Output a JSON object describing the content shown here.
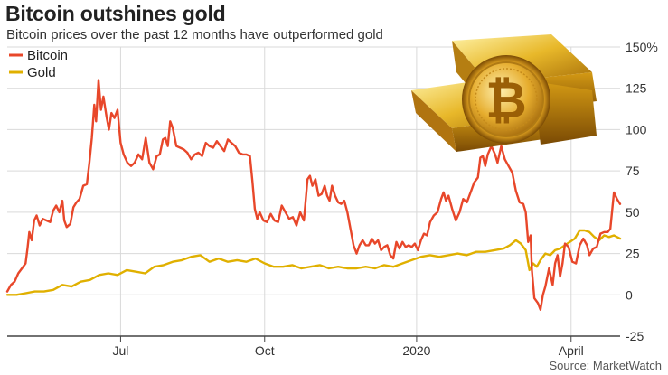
{
  "chart_data": {
    "type": "line",
    "title": "Bitcoin outshines gold",
    "subtitle": "Bitcoin prices over the past 12 months have outperformed gold",
    "source": "Source: MarketWatch",
    "y_unit_suffix": "%",
    "ylim": [
      -25,
      150
    ],
    "y_ticks": [
      -25,
      0,
      25,
      50,
      75,
      100,
      125,
      150
    ],
    "x_ticks": [
      {
        "label": "Jul",
        "t": 0.185
      },
      {
        "label": "Oct",
        "t": 0.42
      },
      {
        "label": "2020",
        "t": 0.668
      },
      {
        "label": "April",
        "t": 0.92
      }
    ],
    "legend": {
      "placement": "top-left"
    },
    "grid": true,
    "series": [
      {
        "name": "Bitcoin",
        "color": "#e8472a",
        "points": [
          [
            0.0,
            2
          ],
          [
            0.006,
            6
          ],
          [
            0.012,
            8
          ],
          [
            0.018,
            13
          ],
          [
            0.024,
            16
          ],
          [
            0.03,
            19
          ],
          [
            0.033,
            28
          ],
          [
            0.036,
            38
          ],
          [
            0.04,
            33
          ],
          [
            0.044,
            45
          ],
          [
            0.048,
            48
          ],
          [
            0.053,
            42
          ],
          [
            0.058,
            46
          ],
          [
            0.064,
            45
          ],
          [
            0.07,
            44
          ],
          [
            0.075,
            51
          ],
          [
            0.08,
            54
          ],
          [
            0.085,
            50
          ],
          [
            0.09,
            57
          ],
          [
            0.093,
            45
          ],
          [
            0.097,
            41
          ],
          [
            0.103,
            43
          ],
          [
            0.108,
            53
          ],
          [
            0.113,
            56
          ],
          [
            0.118,
            58
          ],
          [
            0.124,
            66
          ],
          [
            0.13,
            67
          ],
          [
            0.134,
            80
          ],
          [
            0.138,
            95
          ],
          [
            0.142,
            115
          ],
          [
            0.145,
            105
          ],
          [
            0.149,
            130
          ],
          [
            0.153,
            112
          ],
          [
            0.157,
            120
          ],
          [
            0.162,
            108
          ],
          [
            0.166,
            100
          ],
          [
            0.17,
            110
          ],
          [
            0.175,
            107
          ],
          [
            0.18,
            112
          ],
          [
            0.185,
            92
          ],
          [
            0.19,
            85
          ],
          [
            0.196,
            80
          ],
          [
            0.202,
            78
          ],
          [
            0.208,
            80
          ],
          [
            0.214,
            85
          ],
          [
            0.22,
            82
          ],
          [
            0.226,
            95
          ],
          [
            0.232,
            80
          ],
          [
            0.238,
            76
          ],
          [
            0.244,
            84
          ],
          [
            0.249,
            85
          ],
          [
            0.254,
            94
          ],
          [
            0.258,
            95
          ],
          [
            0.262,
            90
          ],
          [
            0.266,
            105
          ],
          [
            0.27,
            101
          ],
          [
            0.276,
            90
          ],
          [
            0.282,
            89
          ],
          [
            0.288,
            88
          ],
          [
            0.294,
            86
          ],
          [
            0.3,
            82
          ],
          [
            0.306,
            85
          ],
          [
            0.312,
            86
          ],
          [
            0.318,
            84
          ],
          [
            0.324,
            92
          ],
          [
            0.33,
            90
          ],
          [
            0.336,
            89
          ],
          [
            0.342,
            93
          ],
          [
            0.348,
            90
          ],
          [
            0.354,
            87
          ],
          [
            0.36,
            94
          ],
          [
            0.366,
            92
          ],
          [
            0.372,
            90
          ],
          [
            0.378,
            86
          ],
          [
            0.384,
            85
          ],
          [
            0.39,
            85
          ],
          [
            0.396,
            84
          ],
          [
            0.4,
            69
          ],
          [
            0.404,
            52
          ],
          [
            0.408,
            46
          ],
          [
            0.412,
            50
          ],
          [
            0.418,
            45
          ],
          [
            0.424,
            44
          ],
          [
            0.43,
            49
          ],
          [
            0.436,
            45
          ],
          [
            0.442,
            44
          ],
          [
            0.448,
            54
          ],
          [
            0.454,
            50
          ],
          [
            0.46,
            46
          ],
          [
            0.466,
            47
          ],
          [
            0.472,
            42
          ],
          [
            0.478,
            50
          ],
          [
            0.484,
            45
          ],
          [
            0.49,
            70
          ],
          [
            0.494,
            72
          ],
          [
            0.498,
            66
          ],
          [
            0.503,
            70
          ],
          [
            0.508,
            60
          ],
          [
            0.513,
            61
          ],
          [
            0.518,
            66
          ],
          [
            0.522,
            60
          ],
          [
            0.526,
            57
          ],
          [
            0.53,
            66
          ],
          [
            0.535,
            60
          ],
          [
            0.54,
            56
          ],
          [
            0.545,
            55
          ],
          [
            0.55,
            57
          ],
          [
            0.555,
            50
          ],
          [
            0.56,
            40
          ],
          [
            0.565,
            30
          ],
          [
            0.57,
            25
          ],
          [
            0.575,
            30
          ],
          [
            0.58,
            33
          ],
          [
            0.585,
            30
          ],
          [
            0.59,
            30
          ],
          [
            0.595,
            34
          ],
          [
            0.6,
            31
          ],
          [
            0.605,
            33
          ],
          [
            0.61,
            27
          ],
          [
            0.615,
            29
          ],
          [
            0.62,
            30
          ],
          [
            0.625,
            24
          ],
          [
            0.63,
            22
          ],
          [
            0.635,
            32
          ],
          [
            0.64,
            28
          ],
          [
            0.645,
            32
          ],
          [
            0.65,
            29
          ],
          [
            0.655,
            30
          ],
          [
            0.66,
            29
          ],
          [
            0.665,
            31
          ],
          [
            0.67,
            27
          ],
          [
            0.675,
            33
          ],
          [
            0.68,
            37
          ],
          [
            0.685,
            36
          ],
          [
            0.69,
            44
          ],
          [
            0.696,
            48
          ],
          [
            0.702,
            50
          ],
          [
            0.708,
            58
          ],
          [
            0.712,
            62
          ],
          [
            0.716,
            57
          ],
          [
            0.72,
            60
          ],
          [
            0.726,
            52
          ],
          [
            0.732,
            45
          ],
          [
            0.738,
            50
          ],
          [
            0.744,
            58
          ],
          [
            0.75,
            56
          ],
          [
            0.756,
            62
          ],
          [
            0.762,
            68
          ],
          [
            0.768,
            71
          ],
          [
            0.772,
            83
          ],
          [
            0.776,
            84
          ],
          [
            0.78,
            78
          ],
          [
            0.784,
            85
          ],
          [
            0.79,
            90
          ],
          [
            0.796,
            85
          ],
          [
            0.8,
            80
          ],
          [
            0.806,
            90
          ],
          [
            0.812,
            82
          ],
          [
            0.818,
            78
          ],
          [
            0.824,
            74
          ],
          [
            0.83,
            63
          ],
          [
            0.836,
            56
          ],
          [
            0.842,
            55
          ],
          [
            0.846,
            50
          ],
          [
            0.85,
            32
          ],
          [
            0.854,
            36
          ],
          [
            0.856,
            15
          ],
          [
            0.86,
            -2
          ],
          [
            0.866,
            -5
          ],
          [
            0.87,
            -9
          ],
          [
            0.874,
            0
          ],
          [
            0.878,
            5
          ],
          [
            0.884,
            16
          ],
          [
            0.89,
            6
          ],
          [
            0.894,
            19
          ],
          [
            0.898,
            24
          ],
          [
            0.902,
            11
          ],
          [
            0.906,
            19
          ],
          [
            0.91,
            31
          ],
          [
            0.916,
            29
          ],
          [
            0.922,
            20
          ],
          [
            0.928,
            19
          ],
          [
            0.934,
            30
          ],
          [
            0.94,
            34
          ],
          [
            0.946,
            30
          ],
          [
            0.95,
            24
          ],
          [
            0.956,
            28
          ],
          [
            0.962,
            29
          ],
          [
            0.968,
            37
          ],
          [
            0.974,
            38
          ],
          [
            0.98,
            38
          ],
          [
            0.984,
            40
          ],
          [
            0.99,
            62
          ],
          [
            0.995,
            58
          ],
          [
            1.0,
            55
          ]
        ]
      },
      {
        "name": "Gold",
        "color": "#e0b000",
        "points": [
          [
            0.0,
            0
          ],
          [
            0.015,
            0
          ],
          [
            0.03,
            1
          ],
          [
            0.045,
            2
          ],
          [
            0.06,
            2
          ],
          [
            0.075,
            3
          ],
          [
            0.09,
            6
          ],
          [
            0.105,
            5
          ],
          [
            0.12,
            8
          ],
          [
            0.135,
            9
          ],
          [
            0.15,
            12
          ],
          [
            0.165,
            13
          ],
          [
            0.18,
            12
          ],
          [
            0.195,
            15
          ],
          [
            0.21,
            14
          ],
          [
            0.225,
            13
          ],
          [
            0.24,
            17
          ],
          [
            0.255,
            18
          ],
          [
            0.27,
            20
          ],
          [
            0.285,
            21
          ],
          [
            0.3,
            23
          ],
          [
            0.315,
            24
          ],
          [
            0.33,
            20
          ],
          [
            0.345,
            22
          ],
          [
            0.36,
            20
          ],
          [
            0.375,
            21
          ],
          [
            0.39,
            20
          ],
          [
            0.405,
            22
          ],
          [
            0.42,
            19
          ],
          [
            0.435,
            17
          ],
          [
            0.45,
            17
          ],
          [
            0.465,
            18
          ],
          [
            0.48,
            16
          ],
          [
            0.495,
            17
          ],
          [
            0.51,
            18
          ],
          [
            0.525,
            16
          ],
          [
            0.54,
            17
          ],
          [
            0.555,
            16
          ],
          [
            0.57,
            16
          ],
          [
            0.585,
            17
          ],
          [
            0.6,
            16
          ],
          [
            0.615,
            18
          ],
          [
            0.63,
            17
          ],
          [
            0.645,
            19
          ],
          [
            0.66,
            21
          ],
          [
            0.675,
            23
          ],
          [
            0.69,
            24
          ],
          [
            0.705,
            23
          ],
          [
            0.72,
            24
          ],
          [
            0.735,
            25
          ],
          [
            0.75,
            24
          ],
          [
            0.765,
            26
          ],
          [
            0.78,
            26
          ],
          [
            0.795,
            27
          ],
          [
            0.81,
            28
          ],
          [
            0.82,
            30
          ],
          [
            0.83,
            33
          ],
          [
            0.838,
            31
          ],
          [
            0.846,
            27
          ],
          [
            0.852,
            15
          ],
          [
            0.858,
            19
          ],
          [
            0.864,
            17
          ],
          [
            0.87,
            21
          ],
          [
            0.878,
            25
          ],
          [
            0.886,
            24
          ],
          [
            0.894,
            27
          ],
          [
            0.902,
            28
          ],
          [
            0.91,
            30
          ],
          [
            0.918,
            32
          ],
          [
            0.926,
            34
          ],
          [
            0.934,
            39
          ],
          [
            0.942,
            39
          ],
          [
            0.95,
            38
          ],
          [
            0.958,
            35
          ],
          [
            0.966,
            33
          ],
          [
            0.974,
            36
          ],
          [
            0.982,
            35
          ],
          [
            0.99,
            36
          ],
          [
            1.0,
            34
          ]
        ]
      }
    ]
  },
  "image": {
    "description_name": "gold-bars-and-bitcoin",
    "coin_symbol": "₿"
  },
  "colors": {
    "grid": "#d9d9d9",
    "axis": "#444444",
    "background": "#ffffff"
  }
}
